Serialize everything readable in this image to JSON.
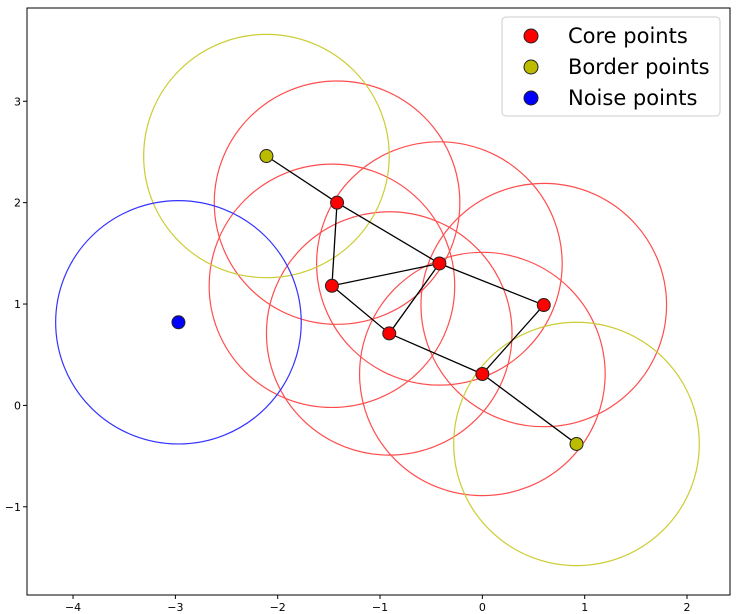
{
  "chart_data": {
    "type": "scatter",
    "title": "",
    "xlabel": "",
    "ylabel": "",
    "xlim": [
      -4.45,
      2.42
    ],
    "ylim": [
      -1.87,
      3.92
    ],
    "xticks": [
      -4,
      -3,
      -2,
      -1,
      0,
      1,
      2
    ],
    "yticks": [
      -1,
      0,
      1,
      2,
      3
    ],
    "xtick_labels": [
      "−4",
      "−3",
      "−2",
      "−1",
      "0",
      "1",
      "2"
    ],
    "ytick_labels": [
      "−1",
      "0",
      "1",
      "2",
      "3"
    ],
    "grid": false,
    "eps": 1.2,
    "legend": {
      "location": "upper right",
      "entries": [
        {
          "label": "Core points",
          "color": "#ff0000"
        },
        {
          "label": "Border points",
          "color": "#bbbb00"
        },
        {
          "label": "Noise points",
          "color": "#0000ff"
        }
      ]
    },
    "series": [
      {
        "name": "Core points",
        "color": "#ff0000",
        "circle_color": "#ff4d4d",
        "points": [
          {
            "x": -1.42,
            "y": 2.0
          },
          {
            "x": -0.42,
            "y": 1.4
          },
          {
            "x": -1.47,
            "y": 1.18
          },
          {
            "x": 0.6,
            "y": 0.99
          },
          {
            "x": -0.91,
            "y": 0.71
          },
          {
            "x": 0.0,
            "y": 0.31
          }
        ]
      },
      {
        "name": "Border points",
        "color": "#bbbb00",
        "circle_color": "#cccc33",
        "points": [
          {
            "x": -2.11,
            "y": 2.46
          },
          {
            "x": 0.92,
            "y": -0.38
          }
        ]
      },
      {
        "name": "Noise points",
        "color": "#0000ff",
        "circle_color": "#3333ff",
        "points": [
          {
            "x": -2.97,
            "y": 0.82
          }
        ]
      }
    ],
    "edges": [
      {
        "from": [
          -2.11,
          2.46
        ],
        "to": [
          -1.42,
          2.0
        ]
      },
      {
        "from": [
          -1.42,
          2.0
        ],
        "to": [
          -0.42,
          1.4
        ]
      },
      {
        "from": [
          -1.42,
          2.0
        ],
        "to": [
          -1.47,
          1.18
        ]
      },
      {
        "from": [
          -0.42,
          1.4
        ],
        "to": [
          -1.47,
          1.18
        ]
      },
      {
        "from": [
          -0.42,
          1.4
        ],
        "to": [
          0.6,
          0.99
        ]
      },
      {
        "from": [
          -0.42,
          1.4
        ],
        "to": [
          -0.91,
          0.71
        ]
      },
      {
        "from": [
          -1.47,
          1.18
        ],
        "to": [
          -0.91,
          0.71
        ]
      },
      {
        "from": [
          -0.91,
          0.71
        ],
        "to": [
          0.0,
          0.31
        ]
      },
      {
        "from": [
          0.6,
          0.99
        ],
        "to": [
          0.0,
          0.31
        ]
      },
      {
        "from": [
          0.0,
          0.31
        ],
        "to": [
          0.92,
          -0.38
        ]
      }
    ]
  }
}
